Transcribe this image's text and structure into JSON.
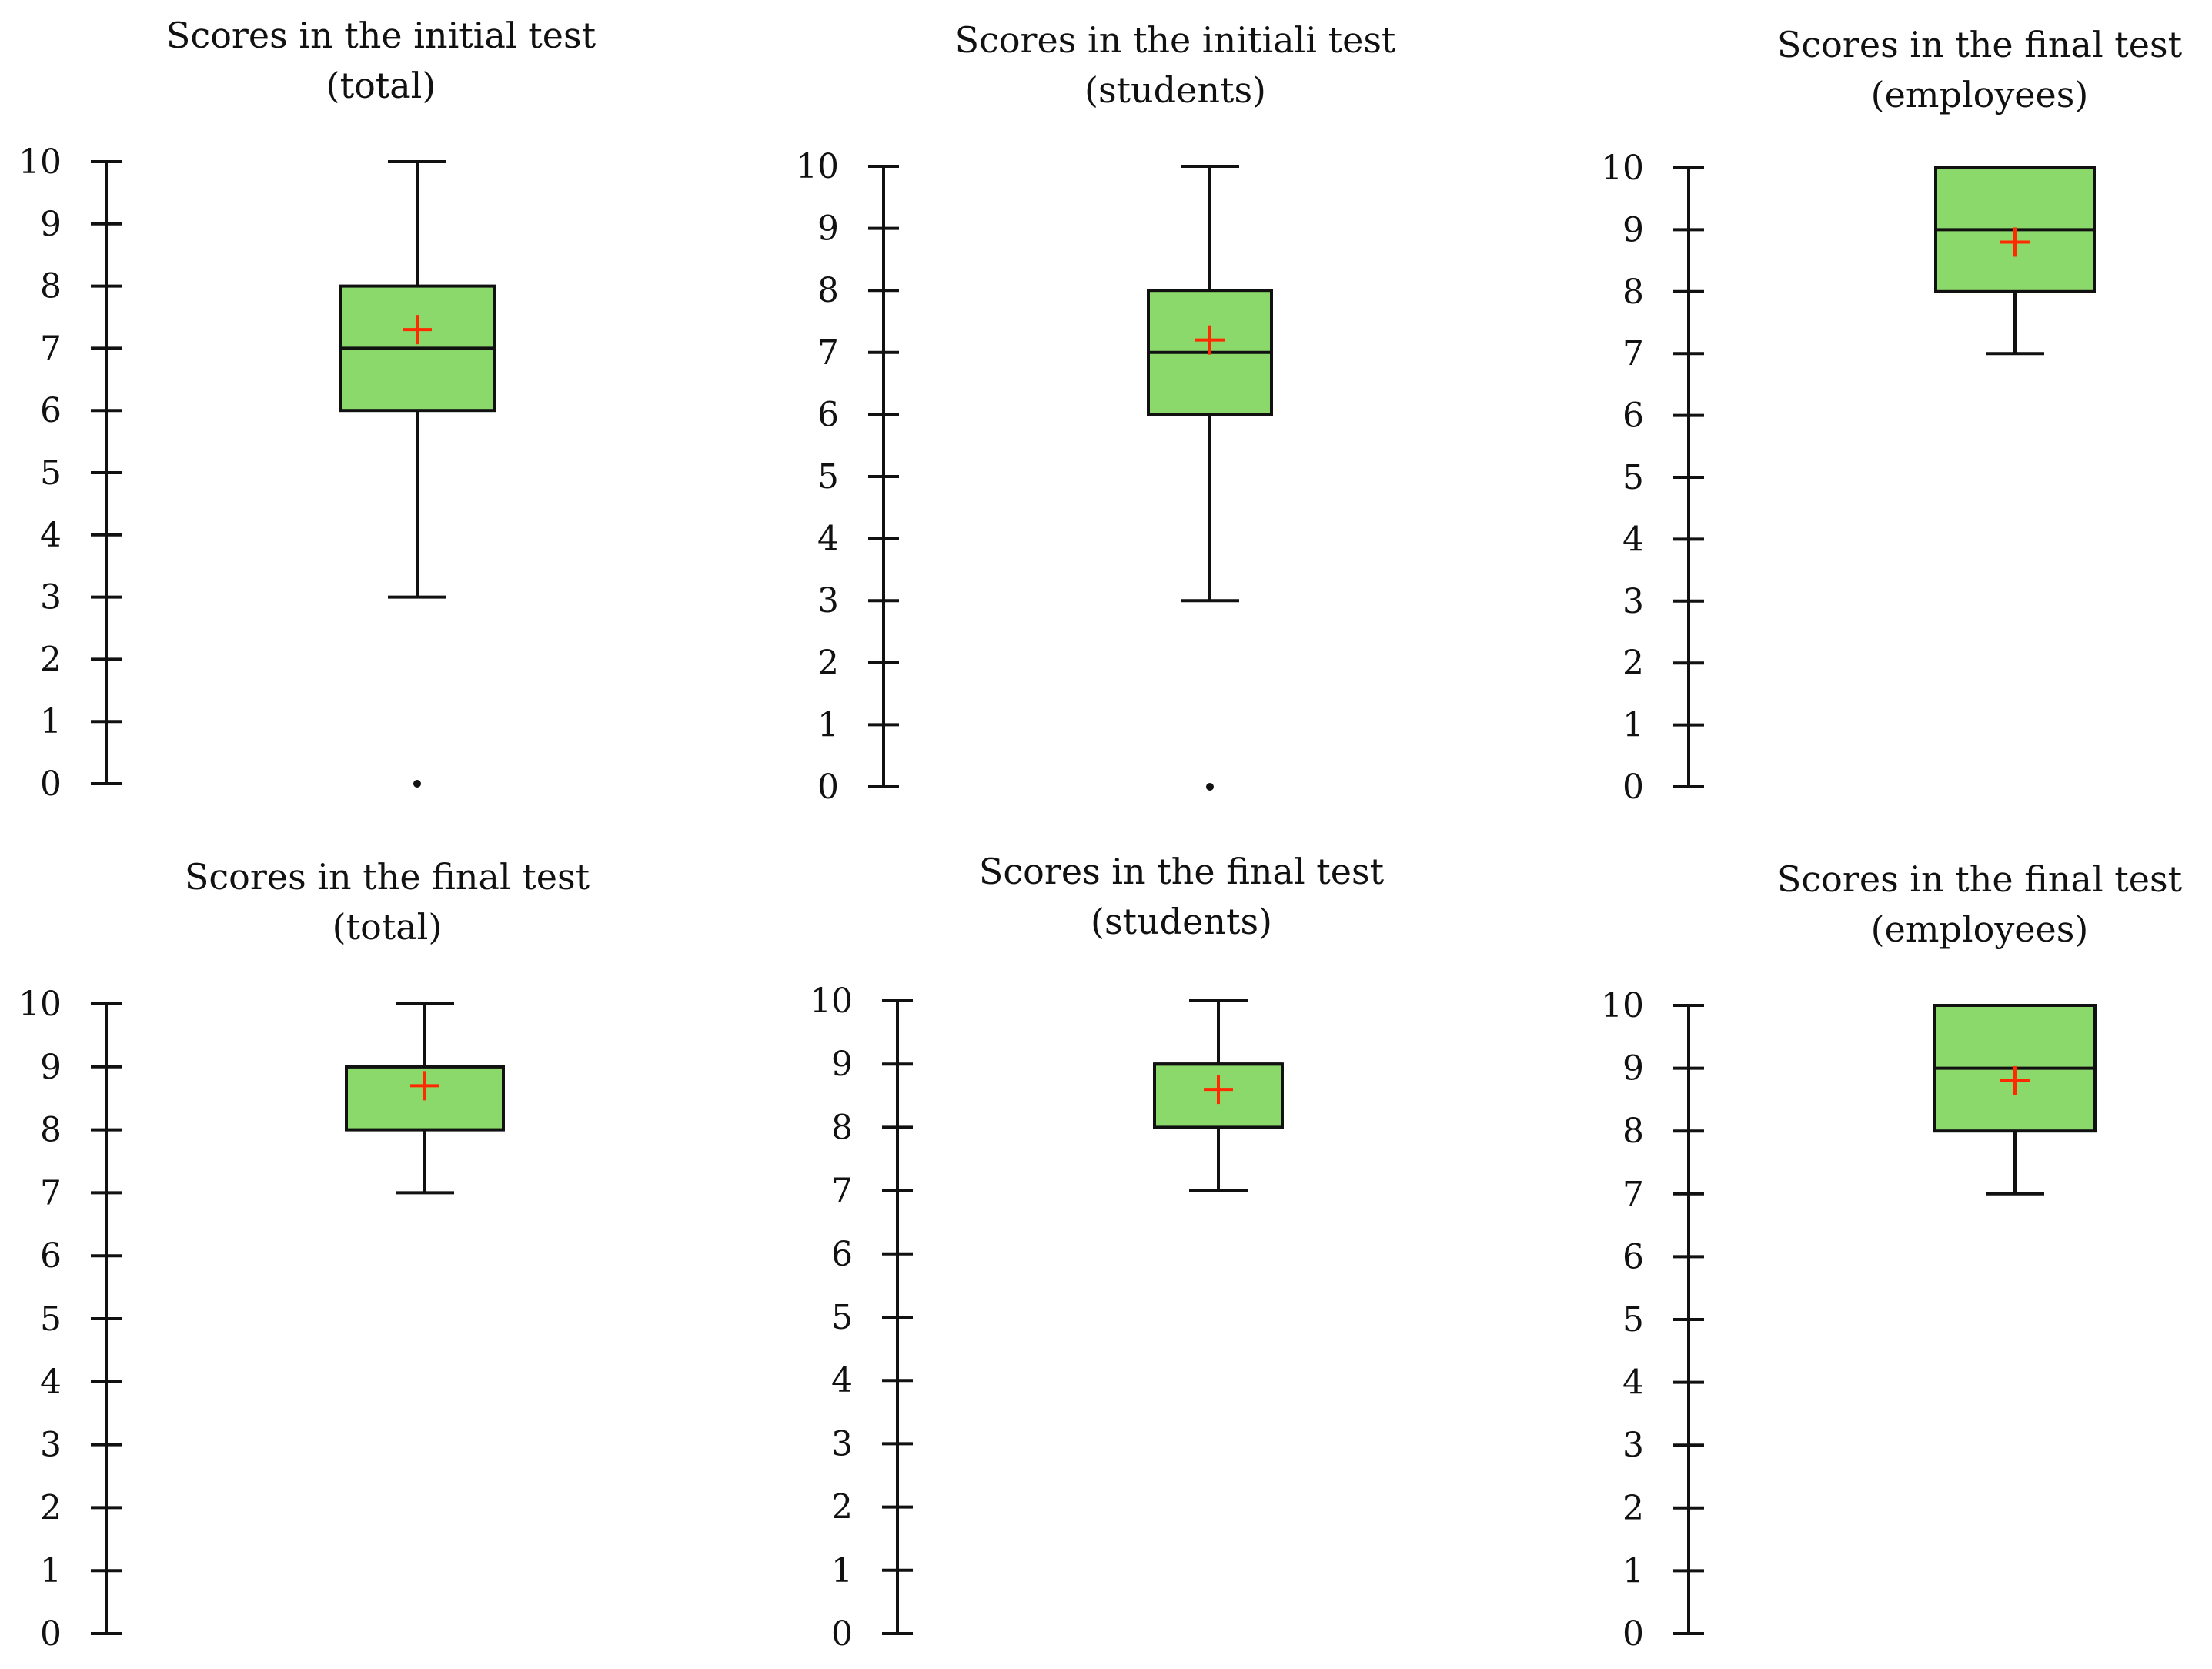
{
  "colors": {
    "box_fill": "#8cd96b",
    "box_stroke": "#111111",
    "mean_marker": "#ff2a00",
    "axis": "#111111"
  },
  "chart_data": [
    {
      "type": "box",
      "title": [
        "Scores in the initial test",
        "(total)"
      ],
      "ylim": [
        0,
        10
      ],
      "yticks": [
        0,
        1,
        2,
        3,
        4,
        5,
        6,
        7,
        8,
        9,
        10
      ],
      "whisker_low": 3,
      "q1": 6,
      "median": 7,
      "q3": 8,
      "whisker_high": 10,
      "mean": 7.3,
      "outliers": [
        0
      ]
    },
    {
      "type": "box",
      "title": [
        "Scores in the initiali test",
        "(students)"
      ],
      "ylim": [
        0,
        10
      ],
      "yticks": [
        0,
        1,
        2,
        3,
        4,
        5,
        6,
        7,
        8,
        9,
        10
      ],
      "whisker_low": 3,
      "q1": 6,
      "median": 7,
      "q3": 8,
      "whisker_high": 10,
      "mean": 7.2,
      "outliers": [
        0
      ]
    },
    {
      "type": "box",
      "title": [
        "Scores in the final test",
        "(employees)"
      ],
      "ylim": [
        0,
        10
      ],
      "yticks": [
        0,
        1,
        2,
        3,
        4,
        5,
        6,
        7,
        8,
        9,
        10
      ],
      "whisker_low": 7,
      "q1": 8,
      "median": 9,
      "q3": 10,
      "whisker_high": 10,
      "mean": 8.8,
      "outliers": []
    },
    {
      "type": "box",
      "title": [
        "Scores in the final test",
        "(total)"
      ],
      "ylim": [
        0,
        10
      ],
      "yticks": [
        0,
        1,
        2,
        3,
        4,
        5,
        6,
        7,
        8,
        9,
        10
      ],
      "whisker_low": 7,
      "q1": 8,
      "median": 9,
      "q3": 9,
      "whisker_high": 10,
      "mean": 8.7,
      "outliers": []
    },
    {
      "type": "box",
      "title": [
        "Scores in the final test",
        "(students)"
      ],
      "ylim": [
        0,
        10
      ],
      "yticks": [
        0,
        1,
        2,
        3,
        4,
        5,
        6,
        7,
        8,
        9,
        10
      ],
      "whisker_low": 7,
      "q1": 8,
      "median": 9,
      "q3": 9,
      "whisker_high": 10,
      "mean": 8.6,
      "outliers": []
    },
    {
      "type": "box",
      "title": [
        "Scores in the final test",
        "(employees)"
      ],
      "ylim": [
        0,
        10
      ],
      "yticks": [
        0,
        1,
        2,
        3,
        4,
        5,
        6,
        7,
        8,
        9,
        10
      ],
      "whisker_low": 7,
      "q1": 8,
      "median": 9,
      "q3": 10,
      "whisker_high": 10,
      "mean": 8.8,
      "outliers": []
    }
  ]
}
